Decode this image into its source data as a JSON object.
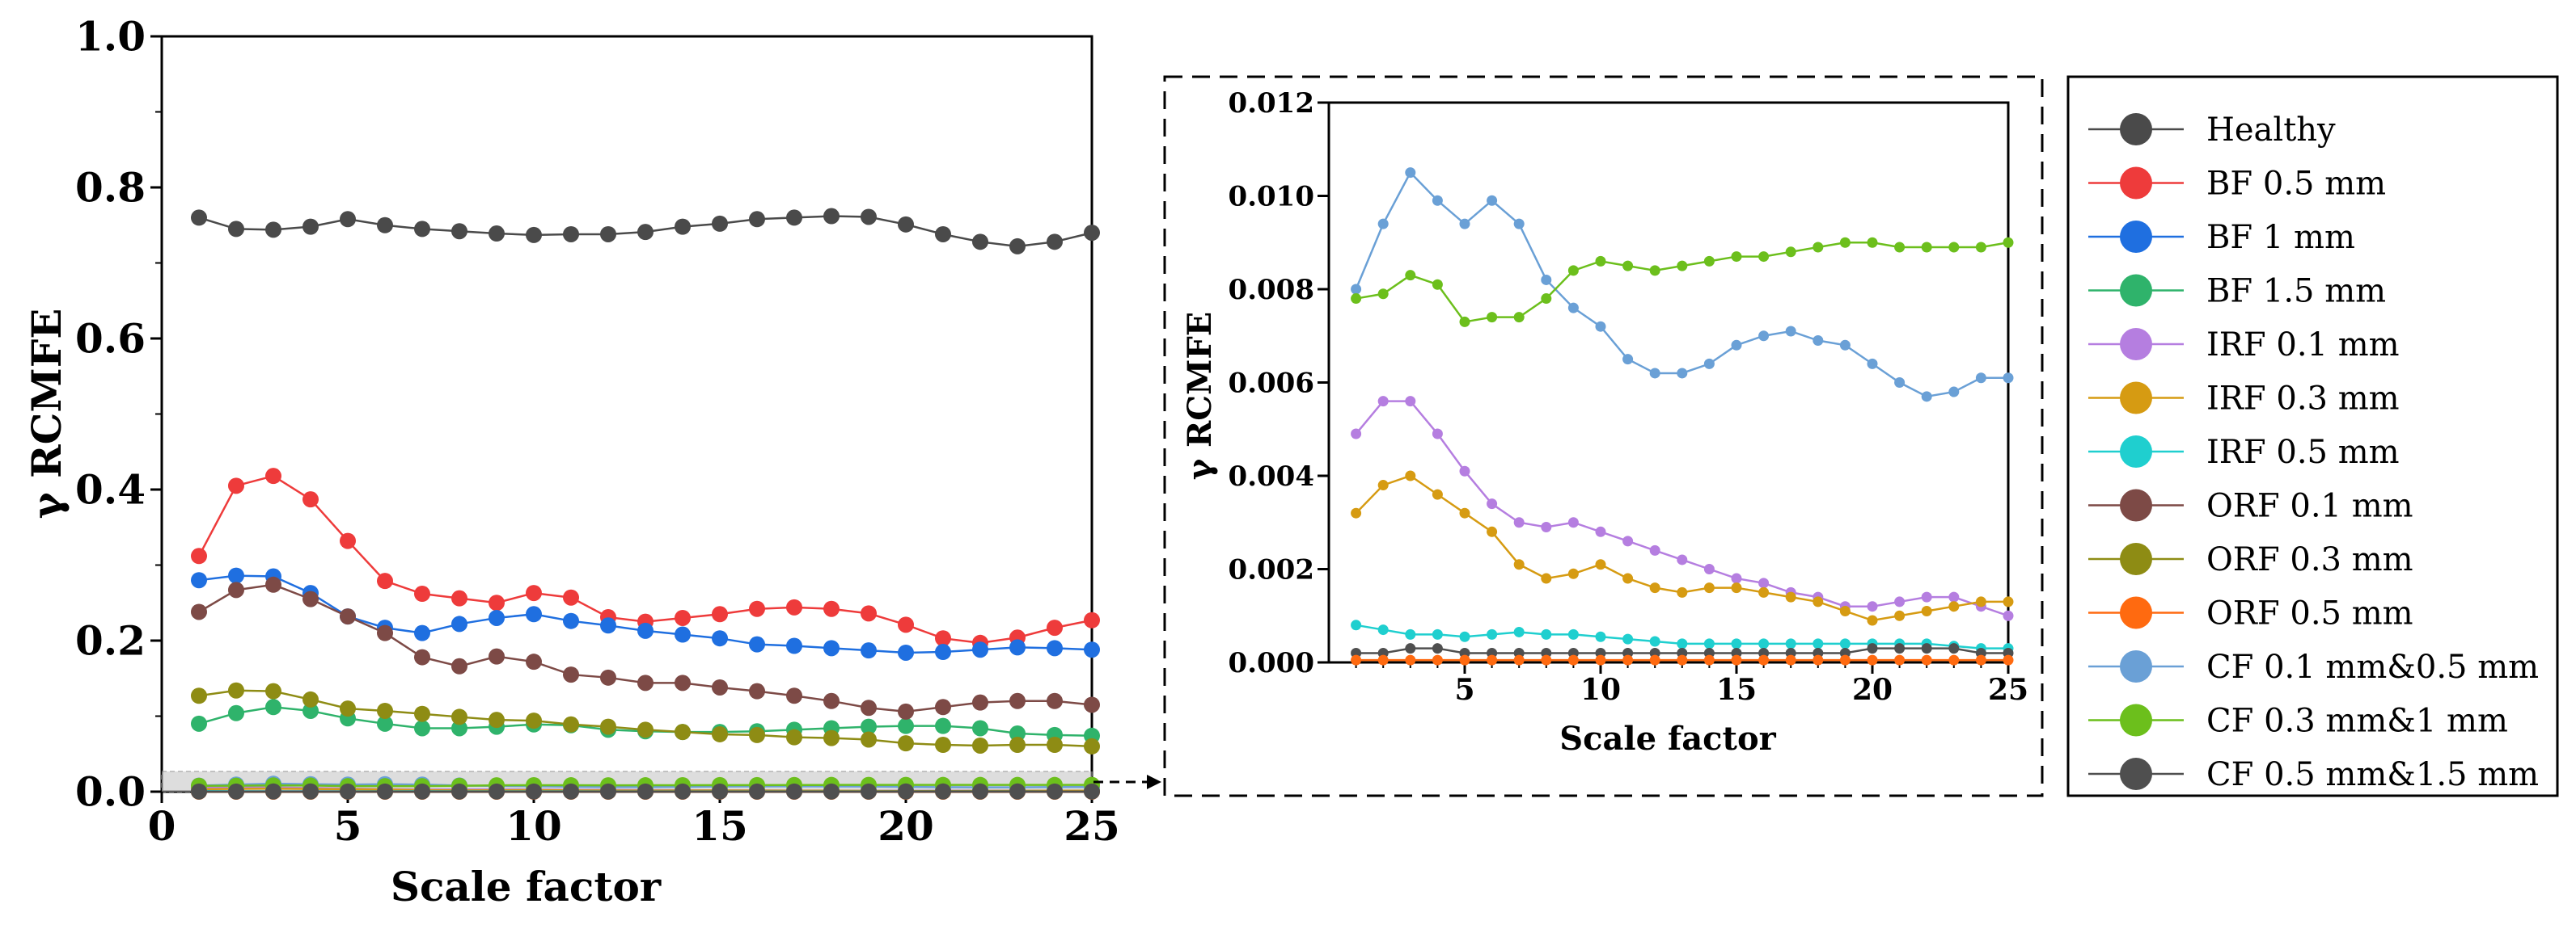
{
  "colors": {
    "healthy": "#4a4a4a",
    "bf05": "#ee3b3b",
    "bf1": "#1f6fe0",
    "bf15": "#2fb36b",
    "irf01": "#b57ee0",
    "irf03": "#d69b12",
    "irf05": "#1fcfcf",
    "orf01": "#7d4a46",
    "orf03": "#8e8c14",
    "orf05": "#ff6a10",
    "cf01": "#6aa0d6",
    "cf03": "#6cbf1c",
    "cf05": "#4f4f4f"
  },
  "chart_data": [
    {
      "id": "main",
      "type": "line",
      "title": "",
      "xlabel": "Scale factor",
      "ylabel": "γ RCMFE",
      "xlim": [
        0,
        25
      ],
      "ylim": [
        0,
        1.0
      ],
      "xticks": [
        0,
        5,
        10,
        15,
        20,
        25
      ],
      "yticks": [
        0.0,
        0.2,
        0.4,
        0.6,
        0.8,
        1.0
      ],
      "ytick_labels": [
        "0.0",
        "0.2",
        "0.4",
        "0.6",
        "0.8",
        "1.0"
      ],
      "x": [
        1,
        2,
        3,
        4,
        5,
        6,
        7,
        8,
        9,
        10,
        11,
        12,
        13,
        14,
        15,
        16,
        17,
        18,
        19,
        20,
        21,
        22,
        23,
        24,
        25
      ],
      "series": [
        {
          "key": "healthy",
          "name": "Healthy",
          "values": [
            0.76,
            0.745,
            0.744,
            0.748,
            0.758,
            0.75,
            0.745,
            0.742,
            0.739,
            0.737,
            0.738,
            0.738,
            0.741,
            0.748,
            0.752,
            0.758,
            0.76,
            0.762,
            0.761,
            0.751,
            0.738,
            0.728,
            0.722,
            0.728,
            0.74
          ]
        },
        {
          "key": "bf05",
          "name": "BF 0.5 mm",
          "values": [
            0.312,
            0.405,
            0.418,
            0.387,
            0.332,
            0.279,
            0.262,
            0.256,
            0.25,
            0.263,
            0.257,
            0.231,
            0.225,
            0.23,
            0.235,
            0.242,
            0.244,
            0.242,
            0.236,
            0.221,
            0.203,
            0.197,
            0.204,
            0.217,
            0.227
          ]
        },
        {
          "key": "bf1",
          "name": "BF 1 mm",
          "values": [
            0.28,
            0.286,
            0.285,
            0.263,
            0.232,
            0.217,
            0.21,
            0.222,
            0.23,
            0.235,
            0.226,
            0.22,
            0.213,
            0.208,
            0.203,
            0.195,
            0.193,
            0.19,
            0.187,
            0.184,
            0.185,
            0.188,
            0.191,
            0.19,
            0.188
          ]
        },
        {
          "key": "bf15",
          "name": "BF 1.5 mm",
          "values": [
            0.09,
            0.104,
            0.112,
            0.107,
            0.097,
            0.09,
            0.084,
            0.084,
            0.086,
            0.089,
            0.088,
            0.082,
            0.08,
            0.079,
            0.079,
            0.08,
            0.082,
            0.084,
            0.086,
            0.087,
            0.087,
            0.084,
            0.077,
            0.075,
            0.074
          ]
        },
        {
          "key": "irf01",
          "name": "IRF 0.1 mm",
          "values": [
            0.0049,
            0.0056,
            0.0056,
            0.0049,
            0.0041,
            0.0034,
            0.003,
            0.0029,
            0.003,
            0.0028,
            0.0026,
            0.0024,
            0.0022,
            0.002,
            0.0018,
            0.0017,
            0.0015,
            0.0014,
            0.0012,
            0.0012,
            0.0013,
            0.0014,
            0.0014,
            0.0012,
            0.001
          ]
        },
        {
          "key": "irf03",
          "name": "IRF 0.3 mm",
          "values": [
            0.0032,
            0.0038,
            0.004,
            0.0036,
            0.0032,
            0.0028,
            0.0021,
            0.0018,
            0.0019,
            0.0021,
            0.0018,
            0.0016,
            0.0015,
            0.0016,
            0.0016,
            0.0015,
            0.0014,
            0.0013,
            0.0011,
            0.0009,
            0.001,
            0.0011,
            0.0012,
            0.0013,
            0.0013
          ]
        },
        {
          "key": "irf05",
          "name": "IRF 0.5 mm",
          "values": [
            0.0008,
            0.0007,
            0.0006,
            0.0006,
            0.00055,
            0.0006,
            0.00065,
            0.0006,
            0.0006,
            0.00055,
            0.0005,
            0.00045,
            0.0004,
            0.0004,
            0.0004,
            0.0004,
            0.0004,
            0.0004,
            0.0004,
            0.0004,
            0.0004,
            0.0004,
            0.00035,
            0.0003,
            0.0003
          ]
        },
        {
          "key": "orf01",
          "name": "ORF 0.1 mm",
          "values": [
            0.238,
            0.267,
            0.274,
            0.255,
            0.232,
            0.21,
            0.178,
            0.166,
            0.179,
            0.172,
            0.155,
            0.151,
            0.144,
            0.144,
            0.138,
            0.133,
            0.127,
            0.12,
            0.111,
            0.106,
            0.112,
            0.118,
            0.12,
            0.12,
            0.115
          ]
        },
        {
          "key": "orf03",
          "name": "ORF 0.3 mm",
          "values": [
            0.127,
            0.134,
            0.133,
            0.122,
            0.11,
            0.107,
            0.103,
            0.099,
            0.095,
            0.094,
            0.089,
            0.086,
            0.082,
            0.079,
            0.076,
            0.075,
            0.072,
            0.071,
            0.069,
            0.064,
            0.062,
            0.061,
            0.062,
            0.062,
            0.06
          ]
        },
        {
          "key": "orf05",
          "name": "ORF 0.5 mm",
          "values": [
            5e-05,
            5e-05,
            5e-05,
            5e-05,
            5e-05,
            5e-05,
            5e-05,
            5e-05,
            5e-05,
            5e-05,
            5e-05,
            5e-05,
            5e-05,
            5e-05,
            5e-05,
            5e-05,
            5e-05,
            5e-05,
            5e-05,
            5e-05,
            5e-05,
            5e-05,
            5e-05,
            5e-05,
            5e-05
          ]
        },
        {
          "key": "cf01",
          "name": "CF 0.1 mm&0.5 mm",
          "values": [
            0.008,
            0.0094,
            0.0105,
            0.0099,
            0.0094,
            0.0099,
            0.0094,
            0.0082,
            0.0076,
            0.0072,
            0.0065,
            0.0062,
            0.0062,
            0.0064,
            0.0068,
            0.007,
            0.0071,
            0.0069,
            0.0068,
            0.0064,
            0.006,
            0.0057,
            0.0058,
            0.0061,
            0.0061
          ]
        },
        {
          "key": "cf03",
          "name": "CF 0.3 mm&1 mm",
          "values": [
            0.0078,
            0.0079,
            0.0083,
            0.0081,
            0.0073,
            0.0074,
            0.0074,
            0.0078,
            0.0084,
            0.0086,
            0.0085,
            0.0084,
            0.0085,
            0.0086,
            0.0087,
            0.0087,
            0.0088,
            0.0089,
            0.009,
            0.009,
            0.0089,
            0.0089,
            0.0089,
            0.0089,
            0.009
          ]
        },
        {
          "key": "cf05",
          "name": "CF 0.5 mm&1.5 mm",
          "values": [
            0.0002,
            0.0002,
            0.0003,
            0.0003,
            0.0002,
            0.0002,
            0.0002,
            0.0002,
            0.0002,
            0.0002,
            0.0002,
            0.0002,
            0.0002,
            0.0002,
            0.0002,
            0.0002,
            0.0002,
            0.0002,
            0.0002,
            0.0003,
            0.0003,
            0.0003,
            0.0003,
            0.0002,
            0.0002
          ]
        }
      ],
      "main_panel_series": [
        "healthy",
        "bf05",
        "bf1",
        "bf15",
        "orf01",
        "orf03",
        "irf01",
        "irf03",
        "irf05",
        "orf05",
        "cf01",
        "cf03",
        "cf05"
      ]
    },
    {
      "id": "inset",
      "type": "line",
      "title": "",
      "xlabel": "Scale factor",
      "ylabel": "γ RCMFE",
      "xlim": [
        0,
        25
      ],
      "ylim": [
        0,
        0.012
      ],
      "xticks": [
        5,
        10,
        15,
        20,
        25
      ],
      "yticks": [
        0.0,
        0.002,
        0.004,
        0.006,
        0.008,
        0.01,
        0.012
      ],
      "ytick_labels": [
        "0.000",
        "0.002",
        "0.004",
        "0.006",
        "0.008",
        "0.010",
        "0.012"
      ],
      "series_keys": [
        "cf01",
        "cf03",
        "irf01",
        "irf03",
        "irf05",
        "cf05",
        "orf05"
      ]
    }
  ],
  "legend": {
    "position": "right",
    "entries": [
      {
        "key": "healthy",
        "label": "Healthy"
      },
      {
        "key": "bf05",
        "label": "BF 0.5 mm"
      },
      {
        "key": "bf1",
        "label": "BF 1 mm"
      },
      {
        "key": "bf15",
        "label": "BF 1.5 mm"
      },
      {
        "key": "irf01",
        "label": "IRF 0.1 mm"
      },
      {
        "key": "irf03",
        "label": "IRF 0.3 mm"
      },
      {
        "key": "irf05",
        "label": "IRF 0.5 mm"
      },
      {
        "key": "orf01",
        "label": "ORF 0.1 mm"
      },
      {
        "key": "orf03",
        "label": "ORF 0.3 mm"
      },
      {
        "key": "orf05",
        "label": "ORF 0.5 mm"
      },
      {
        "key": "cf01",
        "label": "CF 0.1 mm&0.5 mm"
      },
      {
        "key": "cf03",
        "label": "CF 0.3 mm&1 mm"
      },
      {
        "key": "cf05",
        "label": "CF 0.5 mm&1.5 mm"
      }
    ]
  }
}
